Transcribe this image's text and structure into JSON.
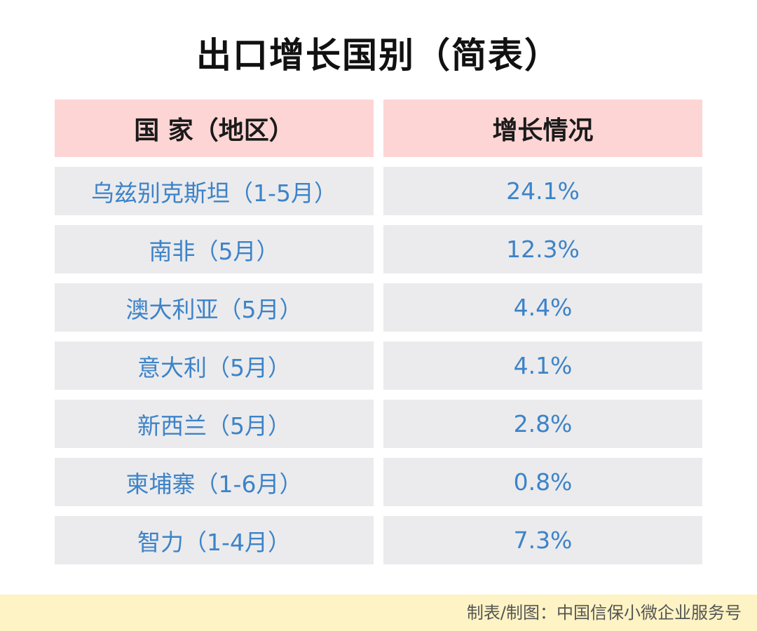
{
  "chart_data": {
    "type": "table",
    "title": "出口增长国别（简表）",
    "columns": [
      "国 家（地区）",
      "增长情况"
    ],
    "rows": [
      [
        "乌兹别克斯坦（1-5月）",
        "24.1%"
      ],
      [
        "南非（5月）",
        "12.3%"
      ],
      [
        "澳大利亚（5月）",
        "4.4%"
      ],
      [
        "意大利（5月）",
        "4.1%"
      ],
      [
        "新西兰（5月）",
        "2.8%"
      ],
      [
        "柬埔寨（1-6月）",
        "0.8%"
      ],
      [
        "智力（1-4月）",
        "7.3%"
      ]
    ]
  },
  "footer": {
    "credit": "制表/制图：中国信保小微企业服务号"
  },
  "colors": {
    "header_bg": "#fdd5d5",
    "row_bg": "#ebebed",
    "value_text": "#3d83c8",
    "footer_bg": "#fdf3c4"
  }
}
